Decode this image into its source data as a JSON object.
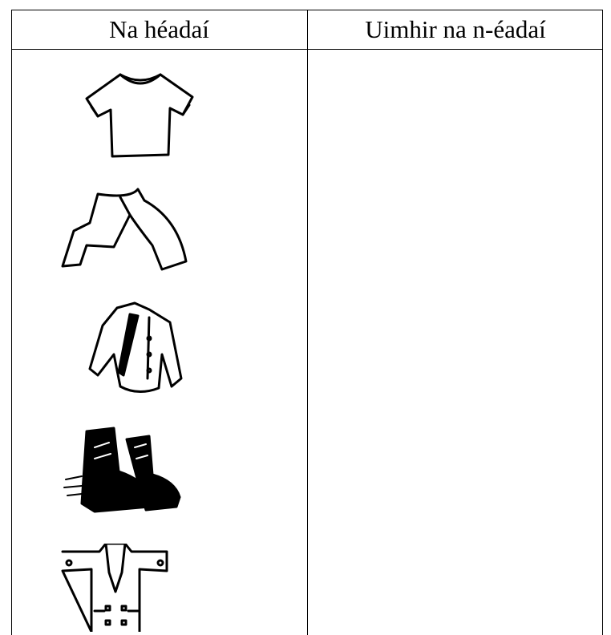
{
  "table": {
    "headers": [
      "Na héadaí",
      "Uimhir na n-éadaí"
    ]
  }
}
